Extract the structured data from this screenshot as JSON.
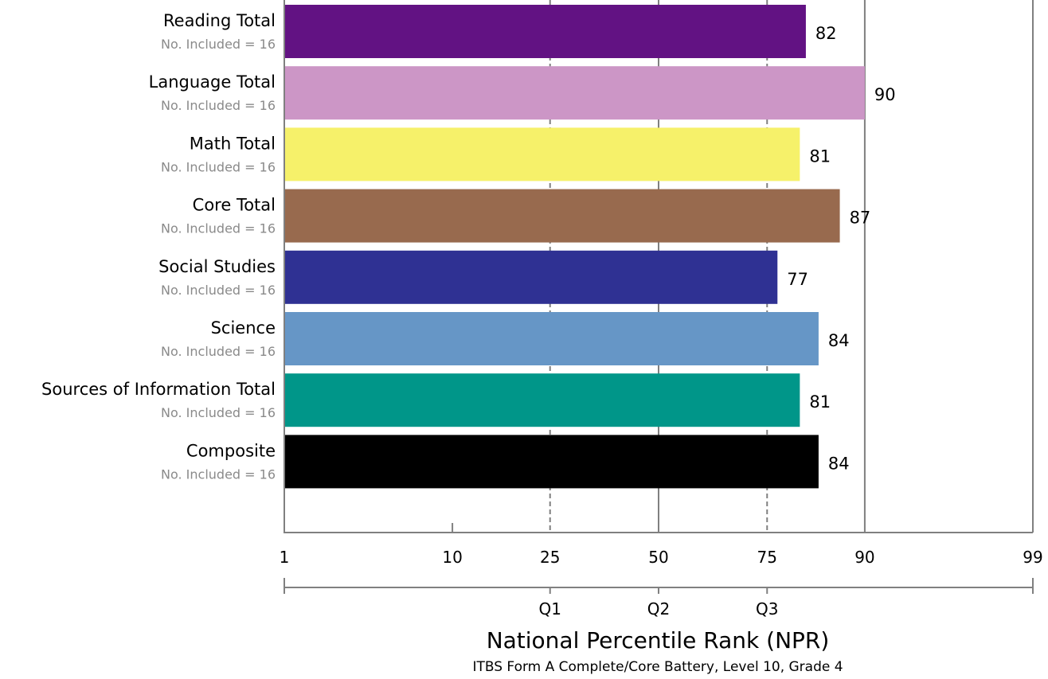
{
  "chart_data": {
    "type": "bar",
    "orientation": "horizontal",
    "categories": [
      "Reading Total",
      "Language Total",
      "Math Total",
      "Core Total",
      "Social Studies",
      "Science",
      "Sources of Information Total",
      "Composite"
    ],
    "sublabels": [
      "No. Included = 16",
      "No. Included = 16",
      "No. Included = 16",
      "No. Included = 16",
      "No. Included = 16",
      "No. Included = 16",
      "No. Included = 16",
      "No. Included = 16"
    ],
    "values": [
      82,
      90,
      81,
      87,
      77,
      84,
      81,
      84
    ],
    "colors": [
      "#621283",
      "#cc96c6",
      "#f6f16a",
      "#986a4e",
      "#2f3193",
      "#6696c6",
      "#009689",
      "#000000"
    ],
    "xaxis": {
      "scale": "normal-percentile",
      "range": [
        1,
        99
      ],
      "ticks": [
        1,
        10,
        25,
        50,
        75,
        90,
        99
      ],
      "quartiles": [
        {
          "value": 25,
          "label": "Q1"
        },
        {
          "value": 50,
          "label": "Q2"
        },
        {
          "value": 75,
          "label": "Q3"
        }
      ]
    },
    "xlabel": "National Percentile Rank (NPR)",
    "xsublabel": "ITBS Form A Complete/Core Battery, Level 10, Grade 4",
    "ylabel": "",
    "grid_color": "#808080"
  }
}
